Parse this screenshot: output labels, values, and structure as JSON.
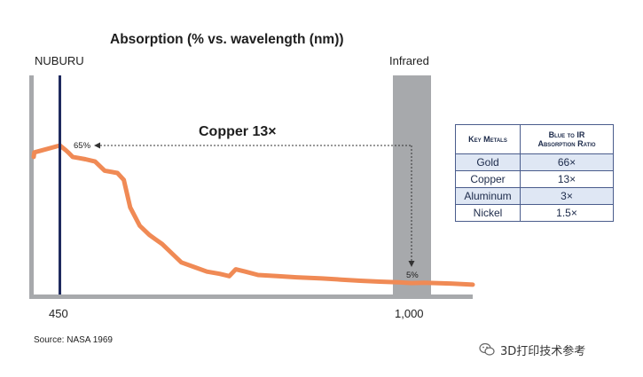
{
  "chart_data": {
    "type": "line",
    "title": "Absorption (% vs. wavelength (nm))",
    "xlabel": "",
    "ylabel": "",
    "x_ticks": [
      "450",
      "1,000"
    ],
    "regions": {
      "nuburu_label": "NUBURU",
      "infrared_label": "Infrared"
    },
    "series": [
      {
        "name": "",
        "color": "#f08a55",
        "x": [
          384,
          410,
          450,
          459,
          463,
          470,
          480,
          490,
          505,
          520,
          540,
          550,
          560,
          575,
          590,
          600,
          610,
          625,
          640,
          660,
          680,
          700,
          715,
          725,
          740,
          760,
          790,
          820,
          860,
          890,
          920,
          950,
          980,
          1000,
          1020,
          1060,
          1100
        ],
        "values": [
          60,
          62,
          65,
          63,
          62,
          60,
          59.5,
          59,
          58,
          54,
          53,
          50,
          38,
          30,
          26,
          24,
          22,
          18,
          14,
          12,
          10,
          9,
          8,
          11,
          10,
          8.5,
          8,
          7.5,
          7,
          6.5,
          6,
          5.6,
          5.3,
          5,
          5.1,
          4.8,
          4.3
        ]
      }
    ],
    "annotations": {
      "headline": "Copper 13×",
      "left_value": "65%",
      "right_value": "5%"
    },
    "source": "Source: NASA 1969"
  },
  "table": {
    "header_metal": "Key Metals",
    "header_ratio_line1": "Blue to IR",
    "header_ratio_line2": "Absorption Ratio",
    "rows": [
      {
        "metal": "Gold",
        "ratio": "66×"
      },
      {
        "metal": "Copper",
        "ratio": "13×"
      },
      {
        "metal": "Aluminum",
        "ratio": "3×"
      },
      {
        "metal": "Nickel",
        "ratio": "1.5×"
      }
    ]
  },
  "watermark": {
    "text": "3D打印技术参考",
    "icon": "wechat-icon"
  },
  "colors": {
    "curve": "#f08a55",
    "infrared_band": "#a7a9ac",
    "nuburu_line": "#1f2a5e",
    "axis": "#a7a9ac",
    "table_border": "#4a5c8c",
    "table_stripe": "#dfe7f4"
  }
}
